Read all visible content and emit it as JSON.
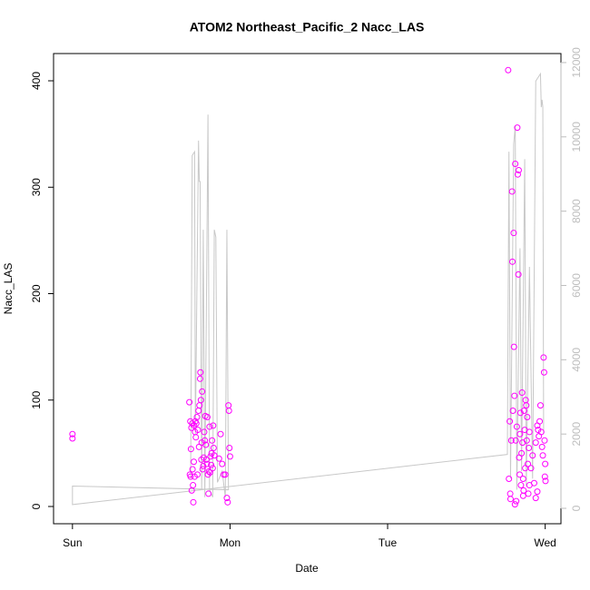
{
  "chart_data": {
    "type": "scatter",
    "title": "ATOM2 Northeast_Pacific_2 Nacc_LAS",
    "xlabel": "Date",
    "ylabel": "Nacc_LAS",
    "xlim": [
      -0.12,
      3.1
    ],
    "xticks": [
      {
        "value": 0,
        "label": "Sun"
      },
      {
        "value": 1,
        "label": "Mon"
      },
      {
        "value": 2,
        "label": "Tue"
      },
      {
        "value": 3,
        "label": "Wed"
      }
    ],
    "ylim": [
      -16.2,
      425.6
    ],
    "yticks": [
      0,
      100,
      200,
      300,
      400
    ],
    "y2lim": [
      -415,
      12243
    ],
    "y2ticks": [
      0,
      2000,
      4000,
      6000,
      8000,
      10000,
      12000
    ],
    "y2color": "#bdbdbd",
    "series": [
      {
        "type": "line",
        "axis": "y2",
        "color": "#c8c8c8",
        "x": [
          0.75,
          0.76,
          0.775,
          0.78,
          0.8,
          0.805,
          0.81,
          0.82,
          0.83,
          0.84,
          0.86,
          0.87,
          0.89,
          0.9,
          0.91,
          0.92,
          0.95,
          0.97,
          0.98,
          0.99,
          0,
          0,
          2.76,
          2.77,
          2.78,
          2.8,
          2.81,
          2.82,
          2.84,
          2.85,
          2.87,
          2.88,
          2.9,
          2.92,
          2.94,
          2.97,
          2.975,
          2.98,
          2.985,
          2.99
        ],
        "values": [
          800,
          9500,
          9600,
          2000,
          9900,
          8800,
          8800,
          500,
          7500,
          300,
          10600,
          500,
          300,
          7500,
          7300,
          700,
          1000,
          300,
          7500,
          500,
          600,
          100,
          1450,
          9600,
          800,
          9800,
          10300,
          500,
          7000,
          1000,
          9400,
          600,
          6500,
          800,
          11500,
          11700,
          10800,
          11000,
          10800,
          2000
        ]
      },
      {
        "type": "scatter",
        "color": "#ff00ff",
        "x": [
          0,
          0,
          0.742,
          0.745,
          0.748,
          0.75,
          0.752,
          0.755,
          0.757,
          0.76,
          0.762,
          0.765,
          0.767,
          0.77,
          0.772,
          0.775,
          0.778,
          0.78,
          0.783,
          0.786,
          0.79,
          0.793,
          0.796,
          0.8,
          0.803,
          0.806,
          0.81,
          0.812,
          0.815,
          0.818,
          0.82,
          0.823,
          0.826,
          0.83,
          0.833,
          0.836,
          0.84,
          0.843,
          0.846,
          0.85,
          0.853,
          0.856,
          0.86,
          0.863,
          0.866,
          0.87,
          0.873,
          0.876,
          0.88,
          0.883,
          0.886,
          0.89,
          0.893,
          0.896,
          0.9,
          0.93,
          0.95,
          0.97,
          0.98,
          0.985,
          0.99,
          0.993,
          0.996,
          1.0,
          0.96,
          0.94,
          2.765,
          2.77,
          2.775,
          2.778,
          2.78,
          2.785,
          2.79,
          2.792,
          2.795,
          2.8,
          2.802,
          2.805,
          2.808,
          2.81,
          2.813,
          2.816,
          2.82,
          2.823,
          2.826,
          2.83,
          2.832,
          2.835,
          2.838,
          2.84,
          2.843,
          2.846,
          2.85,
          2.853,
          2.856,
          2.86,
          2.863,
          2.866,
          2.87,
          2.873,
          2.876,
          2.88,
          2.883,
          2.886,
          2.89,
          2.893,
          2.896,
          2.9,
          2.91,
          2.92,
          2.93,
          2.94,
          2.95,
          2.955,
          2.96,
          2.965,
          2.97,
          2.975,
          2.98,
          2.985,
          2.99,
          2.993,
          2.996,
          3.0,
          2.998,
          3.002,
          2.94,
          2.95,
          2.86,
          2.9
        ],
        "values": [
          68,
          64,
          98,
          30,
          80,
          28,
          54,
          74,
          15,
          78,
          35,
          20,
          4,
          42,
          76,
          28,
          70,
          80,
          65,
          78,
          84,
          30,
          72,
          90,
          56,
          95,
          120,
          126,
          100,
          44,
          60,
          108,
          35,
          38,
          46,
          70,
          62,
          85,
          58,
          44,
          40,
          84,
          30,
          12,
          33,
          75,
          32,
          47,
          39,
          50,
          62,
          36,
          76,
          55,
          48,
          45,
          40,
          30,
          8,
          4,
          95,
          90,
          55,
          47,
          30,
          68,
          410,
          26,
          80,
          12,
          7,
          62,
          296,
          230,
          90,
          257,
          150,
          104,
          2,
          322,
          62,
          5,
          75,
          356,
          312,
          218,
          316,
          46,
          30,
          68,
          88,
          20,
          50,
          107,
          60,
          26,
          15,
          90,
          72,
          36,
          100,
          95,
          62,
          84,
          40,
          12,
          55,
          70,
          36,
          48,
          22,
          60,
          76,
          72,
          66,
          80,
          95,
          70,
          56,
          48,
          140,
          126,
          62,
          40,
          28,
          24,
          8,
          14,
          10,
          20
        ]
      }
    ]
  }
}
